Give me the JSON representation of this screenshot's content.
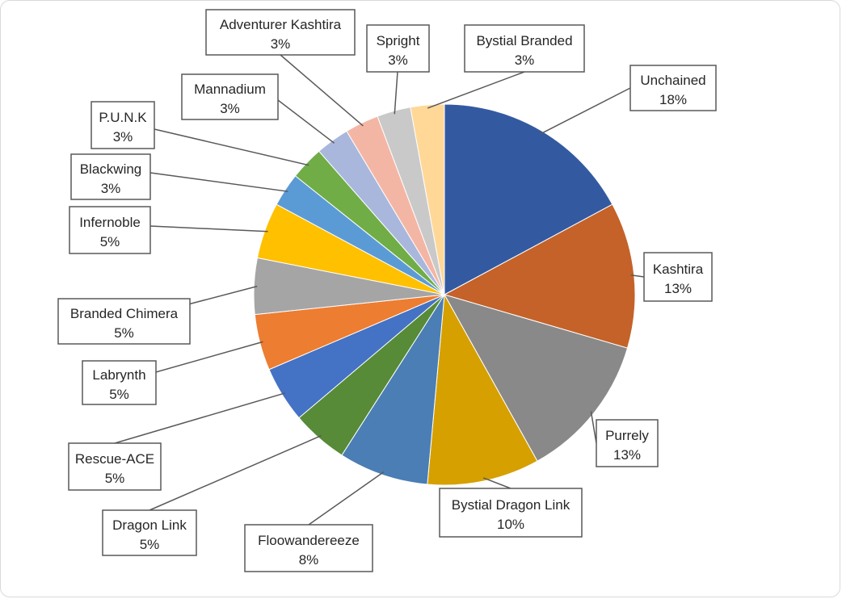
{
  "chart_data": {
    "type": "pie",
    "title": "",
    "labels_format": "{name}\n{pct}",
    "series": [
      {
        "name": "Unchained",
        "value": 18,
        "label": "18%",
        "color": "#335aa1"
      },
      {
        "name": "Kashtira",
        "value": 13,
        "label": "13%",
        "color": "#c4622a"
      },
      {
        "name": "Purrely",
        "value": 13,
        "label": "13%",
        "color": "#898989"
      },
      {
        "name": "Bystial Dragon Link",
        "value": 10,
        "label": "10%",
        "color": "#d5a000"
      },
      {
        "name": "Floowandereeze",
        "value": 8,
        "label": "8%",
        "color": "#4a7eb4"
      },
      {
        "name": "Dragon Link",
        "value": 5,
        "label": "5%",
        "color": "#578b38"
      },
      {
        "name": "Rescue-ACE",
        "value": 5,
        "label": "5%",
        "color": "#4472c4"
      },
      {
        "name": "Labrynth",
        "value": 5,
        "label": "5%",
        "color": "#ed7d31"
      },
      {
        "name": "Branded Chimera",
        "value": 5,
        "label": "5%",
        "color": "#a5a5a5"
      },
      {
        "name": "Infernoble",
        "value": 5,
        "label": "5%",
        "color": "#ffc000"
      },
      {
        "name": "Blackwing",
        "value": 3,
        "label": "3%",
        "color": "#5b9bd5"
      },
      {
        "name": "P.U.N.K",
        "value": 3,
        "label": "3%",
        "color": "#70ad47"
      },
      {
        "name": "Mannadium",
        "value": 3,
        "label": "3%",
        "color": "#a9b7dd"
      },
      {
        "name": "Adventurer Kashtira",
        "value": 3,
        "label": "3%",
        "color": "#f4b6a4"
      },
      {
        "name": "Spright",
        "value": 3,
        "label": "3%",
        "color": "#c9c9c9"
      },
      {
        "name": "Bystial Branded",
        "value": 3,
        "label": "3%",
        "color": "#ffd898"
      }
    ]
  }
}
